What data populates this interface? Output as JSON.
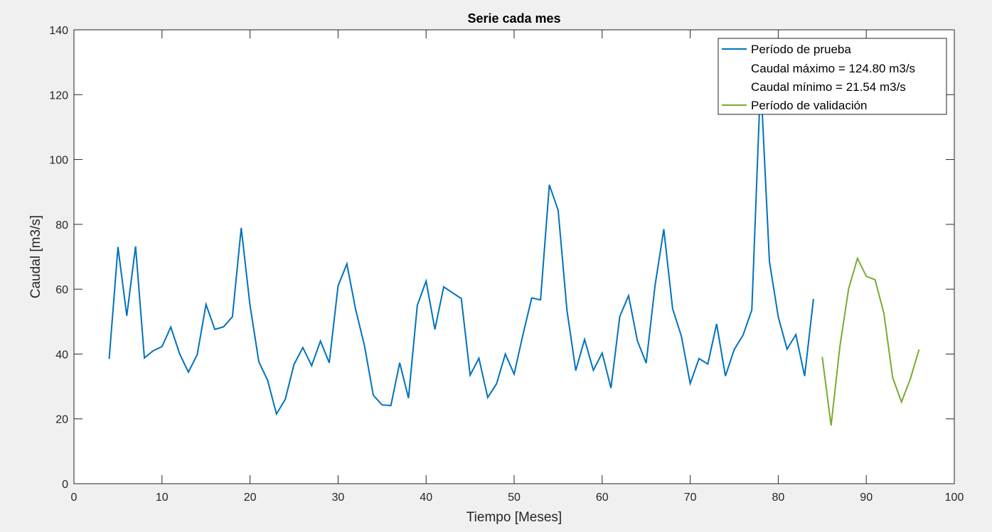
{
  "chart_data": {
    "type": "line",
    "title": "Serie cada mes",
    "xlabel": "Tiempo [Meses]",
    "ylabel": "Caudal [m3/s]",
    "xlim": [
      0,
      100
    ],
    "ylim": [
      0,
      140
    ],
    "x_ticks": [
      "0",
      "10",
      "20",
      "30",
      "40",
      "50",
      "60",
      "70",
      "80",
      "90",
      "100"
    ],
    "y_ticks": [
      "0",
      "20",
      "40",
      "60",
      "80",
      "100",
      "120",
      "140"
    ],
    "grid": false,
    "legend_position": "top-right",
    "legend": [
      {
        "label": "Período de prueba",
        "color": "#0072BD",
        "line": true
      },
      {
        "label": "Caudal máximo = 124.80 m3/s",
        "color": "",
        "line": false
      },
      {
        "label": "Caudal mínimo = 21.54 m3/s",
        "color": "",
        "line": false
      },
      {
        "label": "Período de validación",
        "color": "#77AC30",
        "line": true
      }
    ],
    "series": [
      {
        "name": "Período de prueba",
        "color": "#0072BD",
        "x": [
          4,
          5,
          6,
          7,
          8,
          9,
          10,
          11,
          12,
          13,
          14,
          15,
          16,
          17,
          18,
          19,
          20,
          21,
          22,
          23,
          24,
          25,
          26,
          27,
          28,
          29,
          30,
          31,
          32,
          33,
          34,
          35,
          36,
          37,
          38,
          39,
          40,
          41,
          42,
          43,
          44,
          45,
          46,
          47,
          48,
          49,
          50,
          51,
          52,
          53,
          54,
          55,
          56,
          57,
          58,
          59,
          60,
          61,
          62,
          63,
          64,
          65,
          66,
          67,
          68,
          69,
          70,
          71,
          72,
          73,
          74,
          75,
          76,
          77,
          78,
          79,
          80,
          81,
          82,
          83,
          84
        ],
        "y": [
          38.5,
          73,
          51.8,
          73.2,
          38.8,
          41,
          42.3,
          48.3,
          40.1,
          34.4,
          39.8,
          55.3,
          47.6,
          48.4,
          51.5,
          78.9,
          55,
          37.6,
          31.9,
          21.5,
          26,
          36.8,
          42,
          36.4,
          44,
          37.3,
          61,
          67.8,
          53.7,
          42.6,
          27.3,
          24.3,
          24.1,
          37.3,
          26.4,
          55,
          62.5,
          47.6,
          60.7,
          58.9,
          57.1,
          33.5,
          38.7,
          26.6,
          30.8,
          40,
          33.8,
          46,
          57.3,
          56.7,
          92.2,
          84.3,
          53.5,
          34.9,
          44.5,
          35,
          40.3,
          29.5,
          51.6,
          58,
          44.1,
          37.2,
          61,
          78.5,
          54,
          45.5,
          30.9,
          38.6,
          36.9,
          49.3,
          33.2,
          41.4,
          45.8,
          53.6,
          124.8,
          68.5,
          51.5,
          41.5,
          46,
          33.2,
          57
        ]
      },
      {
        "name": "Período de validación",
        "color": "#77AC30",
        "x": [
          85,
          86,
          87,
          88,
          89,
          90,
          91,
          92,
          93,
          94,
          95,
          96
        ],
        "y": [
          39.1,
          17.9,
          42.3,
          60.2,
          69.5,
          64,
          62.9,
          52.6,
          32.7,
          25.2,
          32.3,
          41.4
        ]
      }
    ]
  }
}
